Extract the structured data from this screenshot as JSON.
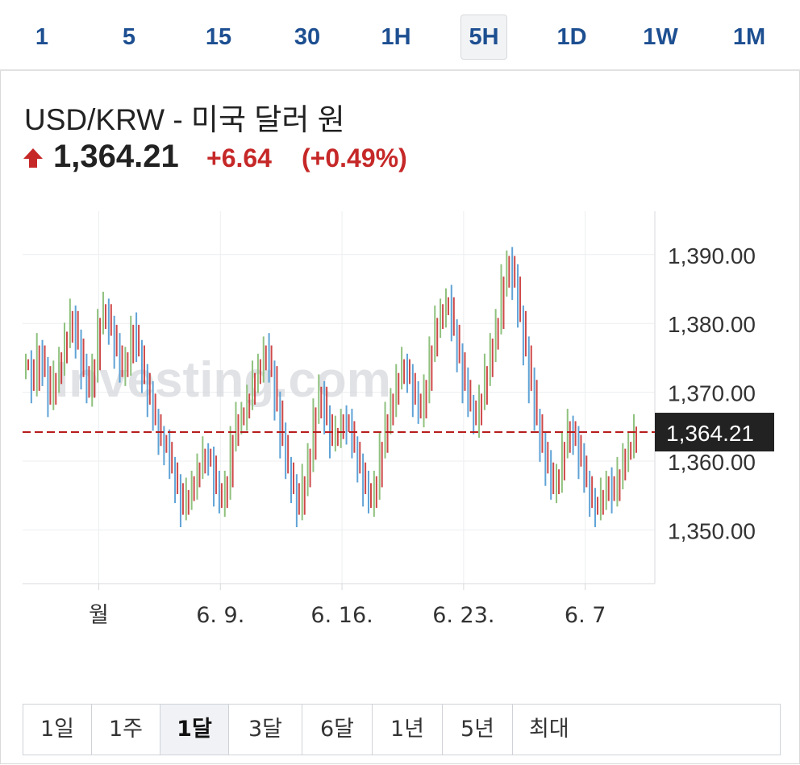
{
  "intervals": [
    {
      "label": "1",
      "active": false
    },
    {
      "label": "5",
      "active": false
    },
    {
      "label": "15",
      "active": false
    },
    {
      "label": "30",
      "active": false
    },
    {
      "label": "1H",
      "active": false
    },
    {
      "label": "5H",
      "active": true
    },
    {
      "label": "1D",
      "active": false
    },
    {
      "label": "1W",
      "active": false
    },
    {
      "label": "1M",
      "active": false
    }
  ],
  "instrument": {
    "title": "USD/KRW - 미국 달러 원",
    "price": "1,364.21",
    "change": "+6.64",
    "change_pct": "(+0.49%)",
    "direction_icon": "up-arrow-icon"
  },
  "colors": {
    "up": "#8fc17e",
    "down": "#5fa3d6",
    "price_line": "#b71c1c",
    "accent_red": "#c62828",
    "interval_text": "#1d4f91"
  },
  "watermark": "Investing.com",
  "range_tabs": [
    {
      "label": "1일",
      "active": false
    },
    {
      "label": "1주",
      "active": false
    },
    {
      "label": "1달",
      "active": true
    },
    {
      "label": "3달",
      "active": false
    },
    {
      "label": "6달",
      "active": false
    },
    {
      "label": "1년",
      "active": false
    },
    {
      "label": "5년",
      "active": false
    },
    {
      "label": "최대",
      "active": false
    }
  ],
  "chart_data": {
    "type": "line",
    "title": "",
    "xlabel": "",
    "ylabel": "",
    "ylim": [
      1342.2,
      1396.3
    ],
    "y_ticks": [
      "1,390.00",
      "1,380.00",
      "1,370.00",
      "1,360.00",
      "1,350.00"
    ],
    "y_tick_values": [
      1390,
      1380,
      1370,
      1360,
      1350
    ],
    "x_ticks": [
      "월",
      "6. 9.",
      "6. 16.",
      "6. 23.",
      "6. 7"
    ],
    "x_tick_positions": [
      6,
      16,
      26,
      36,
      46
    ],
    "current_price_label": "1,364.21",
    "current_price": 1364.21,
    "grid": true,
    "series": [
      {
        "values": [
          1374,
          1371,
          1376,
          1373,
          1369,
          1372,
          1375,
          1378,
          1381,
          1377,
          1373,
          1370,
          1374,
          1380,
          1382,
          1379,
          1376,
          1373,
          1375,
          1379,
          1376,
          1372,
          1369,
          1366,
          1363,
          1362,
          1359,
          1356,
          1353,
          1355,
          1357,
          1359,
          1361,
          1360,
          1356,
          1354,
          1357,
          1363,
          1366,
          1367,
          1369,
          1372,
          1374,
          1376,
          1373,
          1368,
          1363,
          1359,
          1356,
          1353,
          1357,
          1361,
          1367,
          1370,
          1366,
          1363,
          1364,
          1366,
          1365,
          1362,
          1359,
          1356,
          1354,
          1357,
          1362,
          1366,
          1369,
          1372,
          1374,
          1372,
          1369,
          1367,
          1371,
          1376,
          1380,
          1382,
          1383,
          1379,
          1375,
          1371,
          1368,
          1366,
          1369,
          1373,
          1377,
          1380,
          1386,
          1389,
          1386,
          1381,
          1376,
          1371,
          1366,
          1362,
          1359,
          1356,
          1358,
          1362,
          1365,
          1363,
          1360,
          1357,
          1354,
          1353,
          1355,
          1357,
          1355,
          1358,
          1361,
          1362,
          1364.21
        ]
      }
    ]
  }
}
